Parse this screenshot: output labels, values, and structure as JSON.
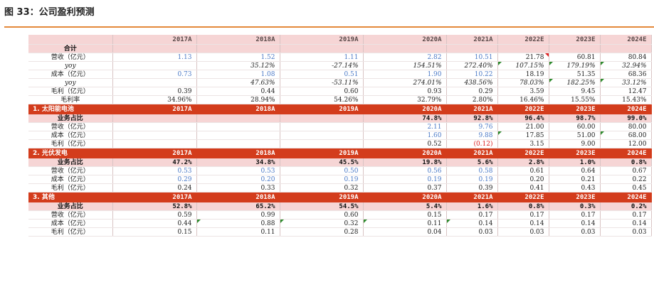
{
  "figure": {
    "title": "图 33：公司盈利预测"
  },
  "columns": [
    "2017A",
    "2018A",
    "2019A",
    "2020A",
    "2021A",
    "2022E",
    "2023E",
    "2024E"
  ],
  "total": {
    "label": "合计",
    "rows": [
      {
        "label": "营收（亿元）",
        "values": [
          "1.13",
          "1.52",
          "1.11",
          "2.82",
          "10.51",
          "21.78",
          "60.81",
          "80.84"
        ]
      },
      {
        "label": "yoy",
        "values": [
          "",
          "35.12%",
          "-27.14%",
          "154.51%",
          "272.40%",
          "107.15%",
          "179.19%",
          "32.94%"
        ]
      },
      {
        "label": "成本（亿元）",
        "values": [
          "0.73",
          "1.08",
          "0.51",
          "1.90",
          "10.22",
          "18.19",
          "51.35",
          "68.36"
        ]
      },
      {
        "label": "yoy",
        "values": [
          "",
          "47.63%",
          "-53.11%",
          "274.01%",
          "438.56%",
          "78.03%",
          "182.25%",
          "33.12%"
        ]
      },
      {
        "label": "毛利（亿元）",
        "values": [
          "0.39",
          "0.44",
          "0.60",
          "0.93",
          "0.29",
          "3.59",
          "9.45",
          "12.47"
        ]
      },
      {
        "label": "毛利率",
        "values": [
          "34.96%",
          "28.94%",
          "54.26%",
          "32.79%",
          "2.80%",
          "16.46%",
          "15.55%",
          "15.43%"
        ]
      }
    ]
  },
  "segments": [
    {
      "title": "1.  太阳能电池",
      "share_label": "业务占比",
      "share": [
        "",
        "",
        "",
        "74.8%",
        "92.8%",
        "96.4%",
        "98.7%",
        "99.0%"
      ],
      "rows": [
        {
          "label": "营收（亿元）",
          "values": [
            "",
            "",
            "",
            "2.11",
            "9.76",
            "21.00",
            "60.00",
            "80.00"
          ]
        },
        {
          "label": "成本（亿元）",
          "values": [
            "",
            "",
            "",
            "1.60",
            "9.88",
            "17.85",
            "51.00",
            "68.00"
          ]
        },
        {
          "label": "毛利（亿元）",
          "values": [
            "",
            "",
            "",
            "0.52",
            "(0.12)",
            "3.15",
            "9.00",
            "12.00"
          ]
        }
      ]
    },
    {
      "title": "2.  光伏发电",
      "share_label": "业务占比",
      "share": [
        "47.2%",
        "34.8%",
        "45.5%",
        "19.8%",
        "5.6%",
        "2.8%",
        "1.0%",
        "0.8%"
      ],
      "rows": [
        {
          "label": "营收（亿元）",
          "values": [
            "0.53",
            "0.53",
            "0.50",
            "0.56",
            "0.58",
            "0.61",
            "0.64",
            "0.67"
          ]
        },
        {
          "label": "成本（亿元）",
          "values": [
            "0.29",
            "0.20",
            "0.19",
            "0.19",
            "0.19",
            "0.20",
            "0.21",
            "0.22"
          ]
        },
        {
          "label": "毛利（亿元）",
          "values": [
            "0.24",
            "0.33",
            "0.32",
            "0.37",
            "0.39",
            "0.41",
            "0.43",
            "0.45"
          ]
        }
      ]
    },
    {
      "title": "3.  其他",
      "share_label": "业务占比",
      "share": [
        "52.8%",
        "65.2%",
        "54.5%",
        "5.4%",
        "1.6%",
        "0.8%",
        "0.3%",
        "0.2%"
      ],
      "rows": [
        {
          "label": "营收（亿元）",
          "values": [
            "0.59",
            "0.99",
            "0.60",
            "0.15",
            "0.17",
            "0.17",
            "0.17",
            "0.17"
          ]
        },
        {
          "label": "成本（亿元）",
          "values": [
            "0.44",
            "0.88",
            "0.32",
            "0.11",
            "0.14",
            "0.14",
            "0.14",
            "0.14"
          ]
        },
        {
          "label": "毛利（亿元）",
          "values": [
            "0.15",
            "0.11",
            "0.28",
            "0.04",
            "0.03",
            "0.03",
            "0.03",
            "0.03"
          ]
        }
      ]
    }
  ],
  "styles": {
    "accent_rule": "#e4893a",
    "band_red": "#d33c1c",
    "header_pink": "#f6d5d5",
    "blue_text": "#4c7ac7",
    "negative_red": "#dd2222"
  }
}
